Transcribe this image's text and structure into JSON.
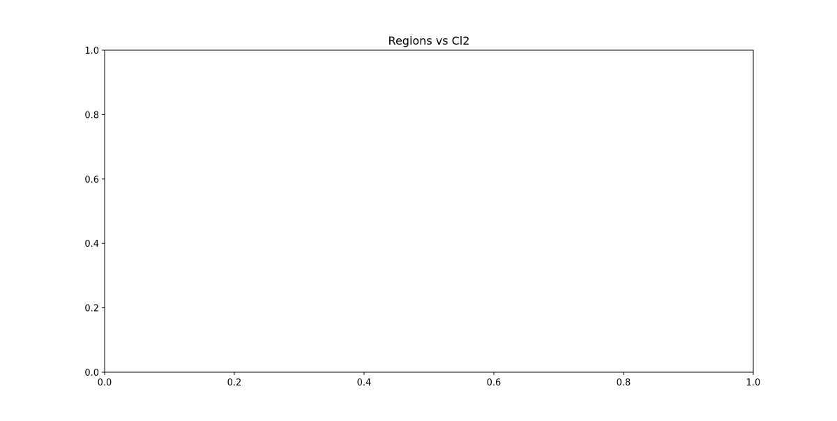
{
  "chart_data": {
    "type": "line",
    "title": "Regions vs Cl2",
    "xlabel": "",
    "ylabel": "",
    "xlim": [
      0.0,
      1.0
    ],
    "ylim": [
      0.0,
      1.0
    ],
    "x_ticks": [
      0.0,
      0.2,
      0.4,
      0.6,
      0.8,
      1.0
    ],
    "y_ticks": [
      0.0,
      0.2,
      0.4,
      0.6,
      0.8,
      1.0
    ],
    "x_tick_labels": [
      "0.0",
      "0.2",
      "0.4",
      "0.6",
      "0.8",
      "1.0"
    ],
    "y_tick_labels": [
      "0.0",
      "0.2",
      "0.4",
      "0.6",
      "0.8",
      "1.0"
    ],
    "series": [],
    "grid": false,
    "legend": "none"
  }
}
